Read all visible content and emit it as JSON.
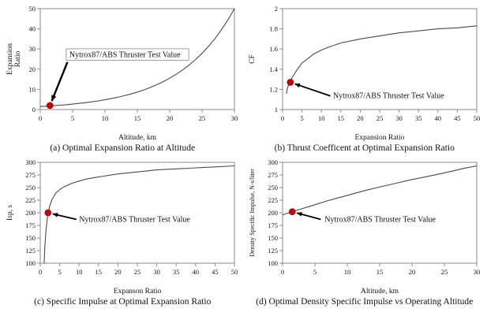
{
  "style": {
    "curve_color": "#4a4a4a",
    "axis_color": "#8a8a8a",
    "marker_color": "#d40000",
    "marker_edge_color": "#7a0000",
    "arrow_color": "#000000",
    "text_color": "#111111",
    "background": "#ffffff"
  },
  "chart_data": [
    {
      "type": "line",
      "caption": "(a) Optimal Expansion Ratio at Altitude",
      "xlabel": "Altitude, km",
      "ylabel": "Expansion\nRatio",
      "xlim": [
        0,
        30
      ],
      "ylim": [
        0,
        50
      ],
      "xticks": [
        0,
        5,
        10,
        15,
        20,
        25,
        30
      ],
      "yticks": [
        0,
        10,
        20,
        30,
        40,
        50
      ],
      "grid": false,
      "x": [
        0,
        1,
        2,
        3,
        4,
        5,
        6,
        7,
        8,
        9,
        10,
        11,
        12,
        13,
        14,
        15,
        16,
        17,
        18,
        19,
        20,
        21,
        22,
        23,
        24,
        25,
        26,
        27,
        28,
        29,
        30
      ],
      "y": [
        1.5,
        1.69,
        1.9,
        2.13,
        2.39,
        2.69,
        3.03,
        3.4,
        3.82,
        4.3,
        4.83,
        5.43,
        6.1,
        6.86,
        7.71,
        8.66,
        9.74,
        10.94,
        12.3,
        13.82,
        15.54,
        17.46,
        19.63,
        22.06,
        24.79,
        27.87,
        31.32,
        35.21,
        39.57,
        44.48,
        50
      ],
      "marker": {
        "x": 1.5,
        "y": 2
      },
      "annotation": {
        "text": "Nytrox87/ABS Thruster Test Value",
        "text_x": 4.5,
        "text_y": 26,
        "arrow_from": [
          4.2,
          23.5
        ],
        "boxed": true,
        "arrow_width": 2.4
      }
    },
    {
      "type": "line",
      "caption": "(b) Thrust Coefficent at Optimal Expansion Ratio",
      "xlabel": "Expansion Ratio",
      "ylabel": "CF",
      "xlim": [
        0,
        50
      ],
      "ylim": [
        1,
        2
      ],
      "xticks": [
        0,
        5,
        10,
        15,
        20,
        25,
        30,
        35,
        40,
        45,
        50
      ],
      "yticks": [
        1,
        1.2,
        1.4,
        1.6,
        1.8,
        2
      ],
      "grid": false,
      "x": [
        1,
        1.25,
        1.5,
        2,
        2.5,
        3,
        4,
        5,
        6,
        8,
        10,
        12,
        15,
        20,
        25,
        30,
        35,
        40,
        45,
        50
      ],
      "y": [
        1.16,
        1.21,
        1.24,
        1.28,
        1.32,
        1.35,
        1.41,
        1.46,
        1.49,
        1.55,
        1.59,
        1.62,
        1.66,
        1.7,
        1.73,
        1.76,
        1.78,
        1.8,
        1.81,
        1.83
      ],
      "marker": {
        "x": 2,
        "y": 1.27
      },
      "annotation": {
        "text": "Nytrox87/ABS Thruster Test Value",
        "text_x": 13,
        "text_y": 1.115,
        "arrow_from": [
          12.3,
          1.135
        ],
        "boxed": false,
        "arrow_width": 1.8
      }
    },
    {
      "type": "line",
      "caption": "(c) Specific Impulse at Optimal Expansion Ratio",
      "xlabel": "Expanson Ratio",
      "ylabel": "Isp, s",
      "xlim": [
        0,
        50
      ],
      "ylim": [
        100,
        300
      ],
      "xticks": [
        0,
        5,
        10,
        15,
        20,
        25,
        30,
        35,
        40,
        45,
        50
      ],
      "yticks": [
        100,
        125,
        150,
        175,
        200,
        225,
        250,
        275,
        300
      ],
      "grid": false,
      "x": [
        1,
        1.2,
        1.5,
        2,
        2.5,
        3,
        4,
        5,
        6,
        8,
        10,
        12,
        15,
        20,
        25,
        30,
        35,
        40,
        45,
        50
      ],
      "y": [
        100,
        135,
        168,
        200,
        215,
        226,
        239,
        246,
        251,
        258,
        263,
        267,
        271,
        277,
        281,
        285,
        287,
        289,
        291,
        293
      ],
      "marker": {
        "x": 2,
        "y": 200
      },
      "annotation": {
        "text": "Nytrox87/ABS Thruster Test Value",
        "text_x": 10,
        "text_y": 182,
        "arrow_from": [
          9.3,
          187
        ],
        "boxed": false,
        "arrow_width": 1.8
      }
    },
    {
      "type": "line",
      "caption": "(d) Optimal Density Specific Impulse vs Operating Altitude",
      "xlabel": "Altitude, km",
      "ylabel": "Density Specific Impulse, N-s/liter",
      "xlim": [
        0,
        30
      ],
      "ylim": [
        100,
        300
      ],
      "xticks": [
        0,
        5,
        10,
        15,
        20,
        25,
        30
      ],
      "yticks": [
        100,
        125,
        150,
        175,
        200,
        225,
        250,
        275,
        300
      ],
      "grid": false,
      "x": [
        0,
        1,
        2,
        3,
        4,
        5,
        7,
        9,
        11,
        13,
        15,
        18,
        20,
        22,
        25,
        28,
        30
      ],
      "y": [
        196,
        200,
        204,
        208,
        212,
        216,
        224,
        231,
        238,
        245,
        251,
        260,
        266,
        271,
        279,
        288,
        293
      ],
      "marker": {
        "x": 1.5,
        "y": 202
      },
      "annotation": {
        "text": "Nytrox87/ABS Thruster Test Value",
        "text_x": 6.5,
        "text_y": 182,
        "arrow_from": [
          5.9,
          187
        ],
        "boxed": false,
        "arrow_width": 1.8
      }
    }
  ]
}
